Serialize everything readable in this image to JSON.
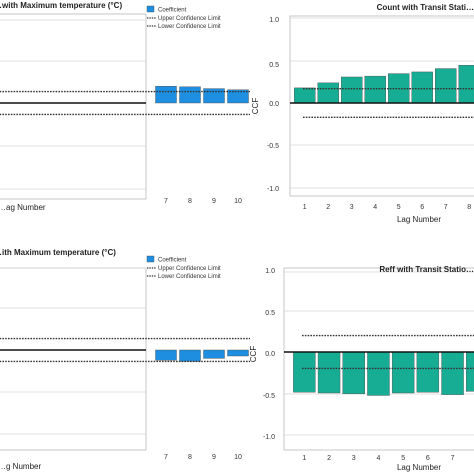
{
  "chart_data": [
    {
      "type": "bar",
      "title": "…with Maximum temperature (°C)",
      "xlabel": "…ag Number",
      "ylabel": "",
      "categories": [
        "7",
        "8",
        "9",
        "10"
      ],
      "series": [
        {
          "name": "Coefficient",
          "values": [
            0.28,
            0.27,
            0.24,
            0.22
          ]
        }
      ],
      "upper_confidence_limit": 0.19,
      "lower_confidence_limit": -0.19,
      "legend": [
        "Coefficient",
        "Upper Confidence Limit",
        "Lower Confidence Limit"
      ],
      "legend_position": "top-right",
      "bar_color": "#1e8fe0",
      "grid": true
    },
    {
      "type": "bar",
      "title": "Count with Transit Stati…",
      "xlabel": "Lag Number",
      "ylabel": "CCF",
      "categories": [
        "1",
        "2",
        "3",
        "4",
        "5",
        "6",
        "7",
        "8"
      ],
      "series": [
        {
          "name": "",
          "values": [
            0.18,
            0.24,
            0.31,
            0.32,
            0.35,
            0.37,
            0.41,
            0.45
          ]
        }
      ],
      "upper_confidence_limit": 0.17,
      "lower_confidence_limit": -0.17,
      "yticks": [
        "1.0",
        "0.5",
        "0.0",
        "-0.5",
        "-1.0"
      ],
      "ylim": [
        -1.05,
        1.05
      ],
      "bar_color": "#17ad95",
      "grid": true
    },
    {
      "type": "bar",
      "title": "…ith Maximum temperature (°C)",
      "xlabel": "…g Number",
      "ylabel": "",
      "categories": [
        "7",
        "8",
        "9",
        "10"
      ],
      "series": [
        {
          "name": "Coefficient",
          "values": [
            -0.17,
            -0.19,
            -0.14,
            -0.1
          ]
        }
      ],
      "upper_confidence_limit": 0.19,
      "lower_confidence_limit": -0.19,
      "legend": [
        "Coefficient",
        "Upper Confidence Limit",
        "Lower Confidence Limit"
      ],
      "legend_position": "top-right",
      "bar_color": "#1e8fe0",
      "grid": true
    },
    {
      "type": "bar",
      "title": "Reff with Transit Statio…",
      "xlabel": "Lag Number",
      "ylabel": "CCF",
      "categories": [
        "1",
        "2",
        "3",
        "4",
        "5",
        "6",
        "7",
        "8"
      ],
      "series": [
        {
          "name": "",
          "values": [
            -0.49,
            -0.5,
            -0.51,
            -0.53,
            -0.5,
            -0.49,
            -0.52,
            -0.48
          ]
        }
      ],
      "upper_confidence_limit": 0.2,
      "lower_confidence_limit": -0.2,
      "yticks": [
        "1.0",
        "0.5",
        "0.0",
        "-0.5",
        "-1.0"
      ],
      "ylim": [
        -1.05,
        1.05
      ],
      "bar_color": "#17ad95",
      "grid": true
    }
  ]
}
